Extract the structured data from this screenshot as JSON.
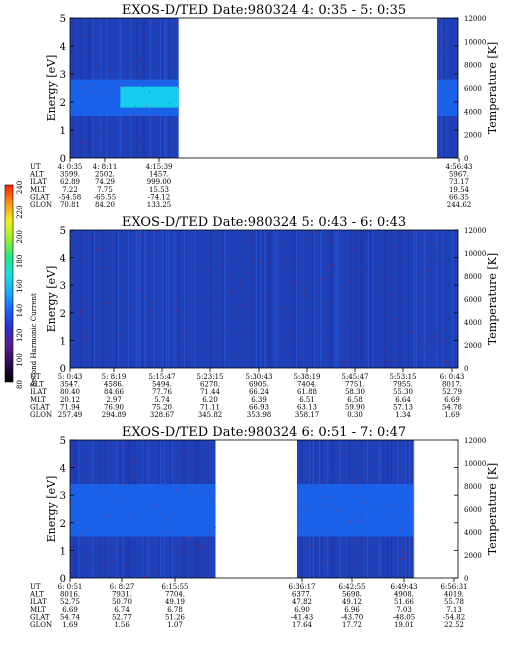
{
  "colors": {
    "background_dark": "#2040b8",
    "band_mid": "#1a66ee",
    "band_bright": "#18d8ee",
    "gap": "#ffffff",
    "speckle": "#b01c2a",
    "colorbar": [
      "#000000",
      "#2a0a55",
      "#5a1e8c",
      "#2a2ed0",
      "#1e60ff",
      "#1aa8ff",
      "#18e0e0",
      "#20e880",
      "#a0f030",
      "#f0f020",
      "#ff9010",
      "#ff2010"
    ]
  },
  "colorbar": {
    "label": "Second Harmonic Current",
    "ticks": [
      "80",
      "100",
      "120",
      "140",
      "160",
      "180",
      "200",
      "220",
      "240"
    ]
  },
  "param_labels": [
    "UT",
    "ALT",
    "ILAT",
    "MLT",
    "GLAT",
    "GLON"
  ],
  "chart_data": [
    {
      "type": "heatmap",
      "title": "EXOS-D/TED   Date:980324  4: 0:35 - 5: 0:35",
      "ylabel": "Energy [eV]",
      "y2label": "Temperature [K]",
      "ylim": [
        0,
        5
      ],
      "y2lim": [
        0,
        12000
      ],
      "yticks": [
        "0",
        "1",
        "2",
        "3",
        "4",
        "5"
      ],
      "y2ticks": [
        "0",
        "2000",
        "4000",
        "6000",
        "8000",
        "10000",
        "12000"
      ],
      "data_segments": [
        [
          0.0,
          0.28
        ],
        [
          0.946,
          1.0
        ]
      ],
      "band_eV": [
        1.5,
        2.8
      ],
      "columns": [
        {
          "UT": "4: 0:35",
          "ALT": "3599.",
          "ILAT": "62.89",
          "MLT": "7.22",
          "GLAT": "-54.58",
          "GLON": "70.81"
        },
        {
          "UT": "4: 8:11",
          "ALT": "2502.",
          "ILAT": "74.29",
          "MLT": "7.75",
          "GLAT": "-65.55",
          "GLON": "84.20"
        },
        {
          "UT": "4:15:39",
          "ALT": "1457.",
          "ILAT": "999.00",
          "MLT": "15.53",
          "GLAT": "-74.12",
          "GLON": "133.25"
        },
        {
          "UT": "4:56:43",
          "ALT": "5967.",
          "ILAT": "73.17",
          "MLT": "19.54",
          "GLAT": "66.35",
          "GLON": "244.62"
        }
      ]
    },
    {
      "type": "heatmap",
      "title": "EXOS-D/TED   Date:980324  5: 0:43 - 6: 0:43",
      "ylabel": "Energy [eV]",
      "y2label": "Temperature [K]",
      "ylim": [
        0,
        5
      ],
      "y2lim": [
        0,
        12000
      ],
      "yticks": [
        "0",
        "1",
        "2",
        "3",
        "4",
        "5"
      ],
      "y2ticks": [
        "0",
        "2000",
        "4000",
        "6000",
        "8000",
        "10000",
        "12000"
      ],
      "data_segments": [
        [
          0.0,
          1.0
        ]
      ],
      "band_eV": [],
      "columns": [
        {
          "UT": "5: 0:43",
          "ALT": "3547.",
          "ILAT": "80.40",
          "MLT": "20.12",
          "GLAT": "71.94",
          "GLON": "257.49"
        },
        {
          "UT": "5: 8:19",
          "ALT": "4586.",
          "ILAT": "84.66",
          "MLT": "2.97",
          "GLAT": "76.90",
          "GLON": "294.89"
        },
        {
          "UT": "5:15:47",
          "ALT": "5494.",
          "ILAT": "77.76",
          "MLT": "5.74",
          "GLAT": "75.20",
          "GLON": "328.67"
        },
        {
          "UT": "5:23:15",
          "ALT": "6270.",
          "ILAT": "71.44",
          "MLT": "6.20",
          "GLAT": "71.11",
          "GLON": "345.82"
        },
        {
          "UT": "5:30:43",
          "ALT": "6905.",
          "ILAT": "66.24",
          "MLT": "6.39",
          "GLAT": "66.93",
          "GLON": "353.98"
        },
        {
          "UT": "5:38:19",
          "ALT": "7404.",
          "ILAT": "61.88",
          "MLT": "6.51",
          "GLAT": "63.13",
          "GLON": "358.17"
        },
        {
          "UT": "5:45:47",
          "ALT": "7751.",
          "ILAT": "58.30",
          "MLT": "6.58",
          "GLAT": "59.90",
          "GLON": "0.30"
        },
        {
          "UT": "5:53:15",
          "ALT": "7955.",
          "ILAT": "55.30",
          "MLT": "6.64",
          "GLAT": "57.13",
          "GLON": "1.34"
        },
        {
          "UT": "6: 0:43",
          "ALT": "8017.",
          "ILAT": "52.79",
          "MLT": "6.69",
          "GLAT": "54.78",
          "GLON": "1.69"
        }
      ]
    },
    {
      "type": "heatmap",
      "title": "EXOS-D/TED   Date:980324  6: 0:51 - 7: 0:47",
      "ylabel": "Energy [eV]",
      "y2label": "Temperature [K]",
      "ylim": [
        0,
        5
      ],
      "y2lim": [
        0,
        12000
      ],
      "yticks": [
        "0",
        "1",
        "2",
        "3",
        "4",
        "5"
      ],
      "y2ticks": [
        "0",
        "2000",
        "4000",
        "6000",
        "8000",
        "10000",
        "12000"
      ],
      "data_segments": [
        [
          0.0,
          0.375
        ],
        [
          0.585,
          0.885
        ]
      ],
      "band_eV": [
        1.5,
        3.4
      ],
      "columns": [
        {
          "UT": "6: 0:51",
          "ALT": "8016.",
          "ILAT": "52.75",
          "MLT": "6.69",
          "GLAT": "54.74",
          "GLON": "1.69"
        },
        {
          "UT": "6: 8:27",
          "ALT": "7931.",
          "ILAT": "50.70",
          "MLT": "6.74",
          "GLAT": "52.77",
          "GLON": "1.56"
        },
        {
          "UT": "6:15:55",
          "ALT": "7704.",
          "ILAT": "49.19",
          "MLT": "6.78",
          "GLAT": "51.26",
          "GLON": "1.07"
        },
        {
          "UT": "6:36:17",
          "ALT": "6377.",
          "ILAT": "47.82",
          "MLT": "6.90",
          "GLAT": "-41.43",
          "GLON": "17.64"
        },
        {
          "UT": "6:42:55",
          "ALT": "5698.",
          "ILAT": "49.12",
          "MLT": "6.96",
          "GLAT": "-43.70",
          "GLON": "17.72"
        },
        {
          "UT": "6:49:43",
          "ALT": "4908.",
          "ILAT": "51.66",
          "MLT": "7.03",
          "GLAT": "-48.05",
          "GLON": "19.01"
        },
        {
          "UT": "6:56:31",
          "ALT": "4019.",
          "ILAT": "55.78",
          "MLT": "7.13",
          "GLAT": "-54.82",
          "GLON": "22.52"
        }
      ]
    }
  ]
}
